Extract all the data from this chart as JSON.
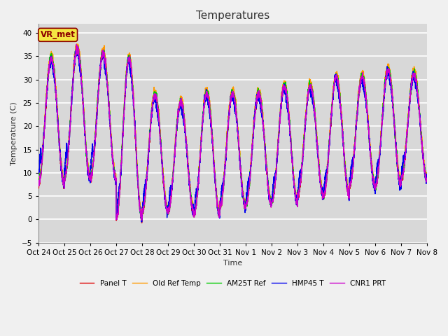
{
  "title": "Temperatures",
  "xlabel": "Time",
  "ylabel": "Temperature (C)",
  "ylim": [
    -5,
    42
  ],
  "yticks": [
    -5,
    0,
    5,
    10,
    15,
    20,
    25,
    30,
    35,
    40
  ],
  "background_color": "#f0f0f0",
  "plot_bg_color": "#d8d8d8",
  "grid_color": "#ffffff",
  "series": [
    {
      "label": "Panel T",
      "color": "#dd0000",
      "lw": 1.0
    },
    {
      "label": "Old Ref Temp",
      "color": "#ff9900",
      "lw": 1.0
    },
    {
      "label": "AM25T Ref",
      "color": "#00cc00",
      "lw": 1.0
    },
    {
      "label": "HMP45 T",
      "color": "#0000ee",
      "lw": 1.0
    },
    {
      "label": "CNR1 PRT",
      "color": "#cc00cc",
      "lw": 1.0
    }
  ],
  "xtick_labels": [
    "Oct 24",
    "Oct 25",
    "Oct 26",
    "Oct 27",
    "Oct 28",
    "Oct 29",
    "Oct 30",
    "Oct 31",
    "Nov 1",
    "Nov 2",
    "Nov 3",
    "Nov 4",
    "Nov 5",
    "Nov 6",
    "Nov 7",
    "Nov 8"
  ],
  "annotation_text": "VR_met",
  "annotation_color": "#8b0000",
  "annotation_bg": "#f5e642",
  "title_fontsize": 11,
  "label_fontsize": 8,
  "tick_fontsize": 7.5
}
